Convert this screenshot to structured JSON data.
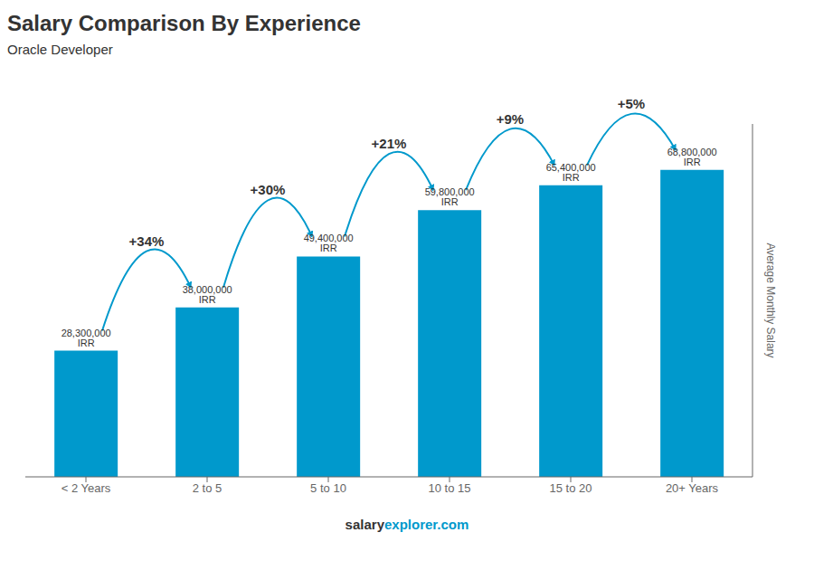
{
  "chart_data": {
    "type": "bar",
    "title": "Salary Comparison By Experience",
    "subtitle": "Oracle Developer",
    "ylabel": "Average Monthly Salary",
    "categories": [
      "< 2 Years",
      "2 to 5",
      "5 to 10",
      "10 to 15",
      "15 to 20",
      "20+ Years"
    ],
    "values": [
      28300000,
      38000000,
      49400000,
      59800000,
      65400000,
      68800000
    ],
    "value_labels": [
      "28,300,000 IRR",
      "38,000,000 IRR",
      "49,400,000 IRR",
      "59,800,000 IRR",
      "65,400,000 IRR",
      "68,800,000 IRR"
    ],
    "data_labels": true,
    "annotations": [
      "+34%",
      "+30%",
      "+21%",
      "+9%",
      "+5%"
    ],
    "watermark": [
      "salary",
      "explorer.com"
    ],
    "color": "#0099CC",
    "ylim": [
      0,
      79120000
    ],
    "tick_labels": "x",
    "grid": false
  }
}
